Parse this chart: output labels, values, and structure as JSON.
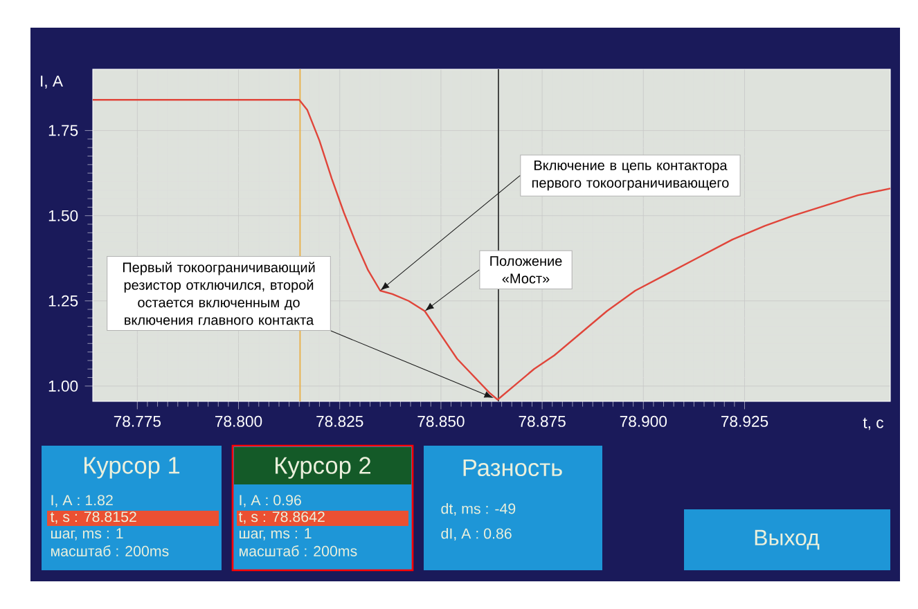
{
  "chart_data": {
    "type": "line",
    "xlabel": "t, c",
    "ylabel": "I, A",
    "series": [
      {
        "color": "#e0453a",
        "x": [
          78.764,
          78.815,
          78.817,
          78.82,
          78.823,
          78.826,
          78.829,
          78.832,
          78.835,
          78.838,
          78.842,
          78.846,
          78.85,
          78.854,
          78.858,
          78.862,
          78.864,
          78.868,
          78.873,
          78.878,
          78.884,
          78.891,
          78.898,
          78.906,
          78.914,
          78.922,
          78.93,
          78.937,
          78.945,
          78.953,
          78.961
        ],
        "values": [
          1.84,
          1.84,
          1.81,
          1.72,
          1.61,
          1.51,
          1.42,
          1.34,
          1.28,
          1.27,
          1.25,
          1.22,
          1.15,
          1.08,
          1.03,
          0.98,
          0.96,
          1.0,
          1.05,
          1.09,
          1.15,
          1.22,
          1.28,
          1.33,
          1.38,
          1.43,
          1.47,
          1.5,
          1.53,
          1.56,
          1.58
        ]
      }
    ],
    "xlim": [
      78.764,
      78.961
    ],
    "ylim": [
      0.955,
      1.93
    ],
    "xticks": [
      {
        "value": 78.775,
        "label": "78.775"
      },
      {
        "value": 78.8,
        "label": "78.800"
      },
      {
        "value": 78.825,
        "label": "78.825"
      },
      {
        "value": 78.85,
        "label": "78.850"
      },
      {
        "value": 78.875,
        "label": "78.875"
      },
      {
        "value": 78.9,
        "label": "78.900"
      },
      {
        "value": 78.925,
        "label": "78.925"
      }
    ],
    "yticks": [
      {
        "value": 1.0,
        "label": "1.00"
      },
      {
        "value": 1.25,
        "label": "1.25"
      },
      {
        "value": 1.5,
        "label": "1.50"
      },
      {
        "value": 1.75,
        "label": "1.75"
      }
    ],
    "grid": true,
    "marker": "none",
    "line_style": "solid",
    "ref_lines": [
      {
        "axis": "x",
        "value": 78.8152,
        "color": "#e8b04a"
      },
      {
        "axis": "x",
        "value": 78.8642,
        "color": "#3a3a3a"
      }
    ],
    "annotations": [
      {
        "text": "Включение в цепь контактора первого токоограничивающего",
        "x": 78.835,
        "y": 1.28
      },
      {
        "text": "Положение «Мост»",
        "x": 78.846,
        "y": 1.22
      },
      {
        "text": "Первый токоограничивающий резистор отключился, второй остается включенным до включения главного контакта",
        "x": 78.863,
        "y": 0.965
      },
      "Курсор 1",
      "I, A : 1.82",
      "t, s : 78.8152",
      "шаг, ms : 1",
      "масштаб : 200ms",
      "Курсор 2",
      "I, A : 0.96",
      "t, s : 78.8642",
      "шаг, ms : 1",
      "масштаб : 200ms",
      "Разность",
      "dt, ms : -49",
      "dI, A : 0.86",
      "Выход"
    ]
  }
}
